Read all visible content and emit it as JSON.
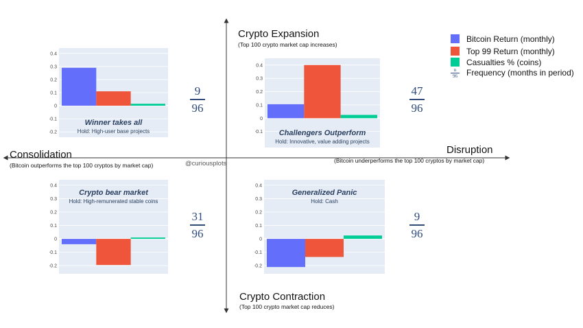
{
  "axes": {
    "top": {
      "title": "Crypto Expansion",
      "subtitle": "(Top 100 crypto market cap increases)"
    },
    "bottom": {
      "title": "Crypto Contraction",
      "subtitle": "(Top 100 crypto market cap reduces)"
    },
    "left": {
      "title": "Consolidation",
      "subtitle": "(Bitcoin outperforms the top 100 cryptos by market cap)"
    },
    "right": {
      "title": "Disruption",
      "subtitle": "(Bitcoin underperforms the top 100 cryptos by market cap)"
    }
  },
  "watermark": "@curiousplots",
  "legend": {
    "items": [
      {
        "label": "Bitcoin Return",
        "note": "(monthly)",
        "color": "#636efa"
      },
      {
        "label": "Top 99 Return",
        "note": "(monthly)",
        "color": "#ef553b"
      },
      {
        "label": "Casualties %",
        "note": "(coins)",
        "color": "#00cc96"
      }
    ],
    "frequency": {
      "num": "n",
      "den": "96",
      "label": "Frequency (months in period)"
    }
  },
  "frequencies": {
    "top_left": {
      "num": "9",
      "den": "96"
    },
    "top_right": {
      "num": "47",
      "den": "96"
    },
    "bottom_left": {
      "num": "31",
      "den": "96"
    },
    "bottom_right": {
      "num": "9",
      "den": "96"
    }
  },
  "colors": {
    "bitcoin": "#636efa",
    "top99": "#ef553b",
    "casualties": "#00cc96",
    "plot_bg": "#e5ecf6",
    "annotation": "#2a3f5f"
  },
  "chart_data": [
    {
      "id": "tl",
      "type": "bar",
      "title": "Winner takes all",
      "subtitle": "Hold: High-user base projects",
      "categories": [
        "Bitcoin Return",
        "Top 99 Return",
        "Casualties %"
      ],
      "values": [
        0.29,
        0.11,
        0.015
      ],
      "ylim": [
        -0.22,
        0.42
      ],
      "ticks": [
        "0.4",
        "0.3",
        "0.2",
        "0.1",
        "0",
        "−0.1",
        "−0.2"
      ],
      "tick_values": [
        0.4,
        0.3,
        0.2,
        0.1,
        0,
        -0.1,
        -0.2
      ]
    },
    {
      "id": "tr",
      "type": "bar",
      "title": "Challengers Outperform",
      "subtitle": "Hold: Innovative, value adding projects",
      "categories": [
        "Bitcoin Return",
        "Top 99 Return",
        "Casualties %"
      ],
      "values": [
        0.105,
        0.4,
        0.025
      ],
      "ylim": [
        -0.2,
        0.43
      ],
      "ticks": [
        "0.4",
        "0.3",
        "0.2",
        "0.1",
        "0",
        "−0.1"
      ],
      "tick_values": [
        0.4,
        0.3,
        0.2,
        0.1,
        0,
        -0.1
      ]
    },
    {
      "id": "bl",
      "type": "bar",
      "title": "Crypto bear market",
      "subtitle": "Hold: High-remunerated stable coins",
      "categories": [
        "Bitcoin Return",
        "Top 99 Return",
        "Casualties %"
      ],
      "values": [
        -0.04,
        -0.195,
        0.01
      ],
      "ylim": [
        -0.24,
        0.42
      ],
      "ticks": [
        "0.4",
        "0.3",
        "0.2",
        "0.1",
        "0",
        "−0.1",
        "−0.2"
      ],
      "tick_values": [
        0.4,
        0.3,
        0.2,
        0.1,
        0,
        -0.1,
        -0.2
      ]
    },
    {
      "id": "br",
      "type": "bar",
      "title": "Generalized Panic",
      "subtitle": "Hold: Cash",
      "categories": [
        "Bitcoin Return",
        "Top 99 Return",
        "Casualties %"
      ],
      "values": [
        -0.21,
        -0.135,
        0.025
      ],
      "ylim": [
        -0.24,
        0.42
      ],
      "ticks": [
        "0.4",
        "0.3",
        "0.2",
        "0.1",
        "0",
        "−0.1",
        "−0.2"
      ],
      "tick_values": [
        0.4,
        0.3,
        0.2,
        0.1,
        0,
        -0.1,
        -0.2
      ]
    }
  ]
}
